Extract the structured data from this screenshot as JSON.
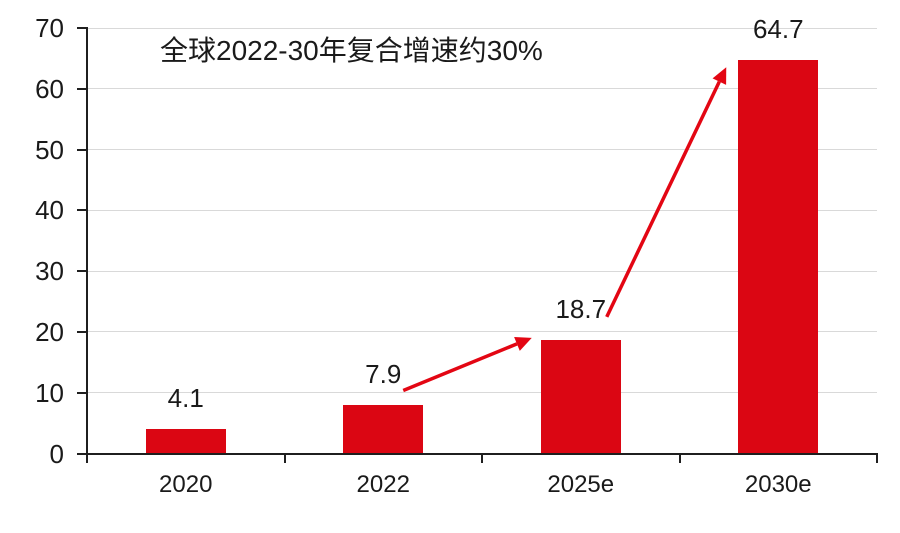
{
  "chart_data": {
    "type": "bar",
    "title": "",
    "annotation": "全球2022-30年复合增速约30%",
    "categories": [
      "2020",
      "2022",
      "2025e",
      "2030e"
    ],
    "values": [
      4.1,
      7.9,
      18.7,
      64.7
    ],
    "data_labels": [
      "4.1",
      "7.9",
      "18.7",
      "64.7"
    ],
    "ylim": [
      0,
      70
    ],
    "yticks": [
      0,
      10,
      20,
      30,
      40,
      50,
      60,
      70
    ],
    "ytick_labels": [
      "0",
      "10",
      "20",
      "30",
      "40",
      "50",
      "60",
      "70"
    ],
    "xlabel": "",
    "ylabel": "",
    "grid": "horizontal",
    "legend": "none",
    "bar_color": "#db0613",
    "arrow_color": "#e30613",
    "axis_color": "#1f1f1f",
    "gridline_color": "#d9d9d9",
    "text_color": "#1a1a1a",
    "background": "#ffffff",
    "arrows": [
      {
        "from": "2022",
        "to": "2025e"
      },
      {
        "from": "2025e",
        "to": "2030e"
      }
    ]
  }
}
